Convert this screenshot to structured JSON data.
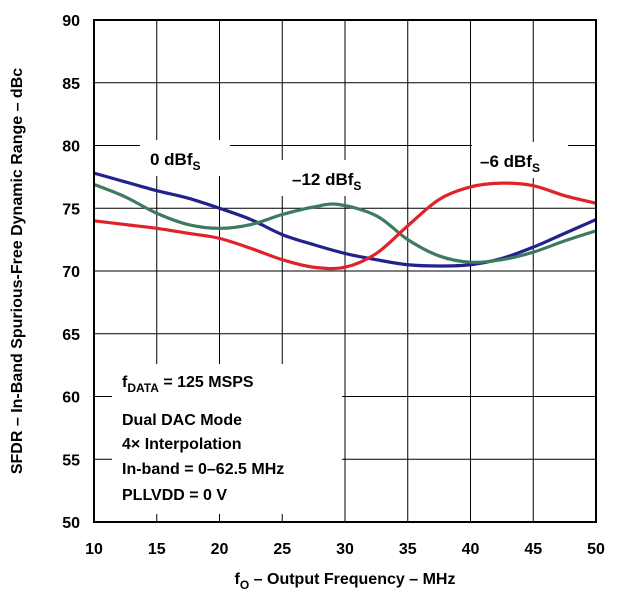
{
  "chart_data": {
    "type": "line",
    "xlabel_main": "f",
    "xlabel_sub": "O",
    "xlabel_rest": " – Output Frequency – MHz",
    "ylabel": "SFDR – In-Band Spurious-Free Dynamic Range – dBc",
    "xlim": [
      10,
      50
    ],
    "ylim": [
      50,
      90
    ],
    "grid": true,
    "x_ticks": [
      "10",
      "15",
      "20",
      "25",
      "30",
      "35",
      "40",
      "45",
      "50"
    ],
    "y_ticks": [
      "50",
      "55",
      "60",
      "65",
      "70",
      "75",
      "80",
      "85",
      "90"
    ],
    "series": [
      {
        "name_main": "0 dBf",
        "name_sub": "S",
        "color": "#22228c",
        "x": [
          10,
          12.5,
          15,
          17.5,
          20,
          22.5,
          25,
          27.5,
          30,
          32.5,
          35,
          37.5,
          40,
          42.5,
          45,
          47.5,
          50
        ],
        "y": [
          77.8,
          77.1,
          76.4,
          75.8,
          75.0,
          74.1,
          72.9,
          72.1,
          71.4,
          70.9,
          70.5,
          70.4,
          70.5,
          71.0,
          71.9,
          73.0,
          74.1
        ]
      },
      {
        "name_main": "–12 dBf",
        "name_sub": "S",
        "color": "#3e7a5e",
        "x": [
          10,
          12.5,
          15,
          17.5,
          20,
          22.5,
          25,
          27.5,
          29.5,
          32.5,
          35,
          37.5,
          40,
          42.5,
          45,
          47.5,
          50
        ],
        "y": [
          76.9,
          75.9,
          74.6,
          73.7,
          73.4,
          73.7,
          74.5,
          75.1,
          75.3,
          74.4,
          72.5,
          71.2,
          70.7,
          70.9,
          71.5,
          72.4,
          73.2
        ]
      },
      {
        "name_main": "–6 dBf",
        "name_sub": "S",
        "color": "#e0232a",
        "x": [
          10,
          12.5,
          15,
          17.5,
          20,
          22.5,
          25,
          27.5,
          30,
          32.5,
          35,
          37.5,
          40,
          42.5,
          45,
          47.5,
          50
        ],
        "y": [
          74.0,
          73.7,
          73.4,
          73.0,
          72.6,
          71.8,
          70.9,
          70.3,
          70.3,
          71.4,
          73.6,
          75.7,
          76.7,
          77.0,
          76.8,
          76.0,
          75.4
        ]
      }
    ],
    "conditions": [
      {
        "main": "f",
        "sub": "DATA",
        "rest": " = 125 MSPS"
      },
      {
        "main": "Dual DAC Mode",
        "sub": "",
        "rest": ""
      },
      {
        "main": "4× Interpolation",
        "sub": "",
        "rest": ""
      },
      {
        "main": "In-band = 0–62.5 MHz",
        "sub": "",
        "rest": ""
      },
      {
        "main": "PLLVDD = 0 V",
        "sub": "",
        "rest": ""
      }
    ]
  }
}
